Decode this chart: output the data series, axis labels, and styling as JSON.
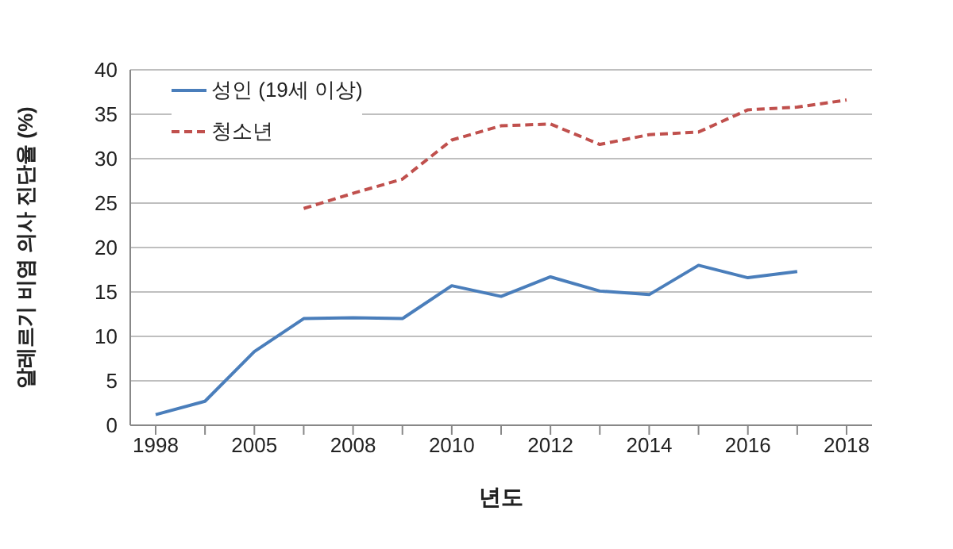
{
  "chart_data": {
    "type": "line",
    "xlabel": "년도",
    "ylabel": "알레르기 비염 의사 진단율 (%)",
    "categories": [
      "1998",
      null,
      "2005",
      null,
      "2008",
      null,
      "2010",
      null,
      "2012",
      null,
      "2014",
      null,
      "2016",
      null,
      "2018"
    ],
    "series": [
      {
        "name": "성인 (19세 이상)",
        "color": "#4a7ebb",
        "line_style": "solid",
        "values": [
          1.2,
          2.7,
          8.3,
          12.0,
          12.1,
          12.0,
          15.7,
          14.5,
          16.7,
          15.1,
          14.7,
          18.0,
          16.6,
          17.3,
          null
        ]
      },
      {
        "name": "청소년",
        "color": "#c0504d",
        "line_style": "dashed",
        "values": [
          null,
          null,
          null,
          24.4,
          26.1,
          27.7,
          32.1,
          33.7,
          33.9,
          31.6,
          32.7,
          33.0,
          35.5,
          35.8,
          36.6
        ]
      }
    ],
    "ylim": [
      0,
      40
    ],
    "yticks": [
      0,
      5,
      10,
      15,
      20,
      25,
      30,
      35,
      40
    ],
    "grid": "y",
    "legend": "top left",
    "marker": "none"
  }
}
